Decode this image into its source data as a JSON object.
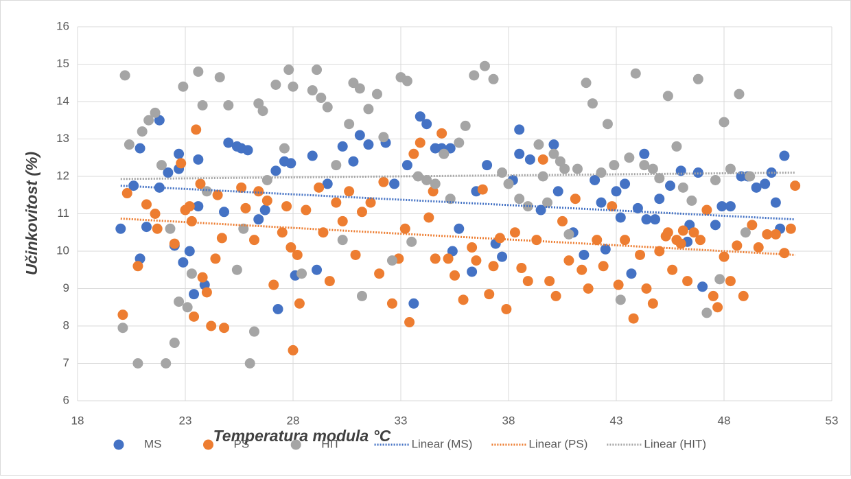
{
  "chart_data": {
    "type": "scatter",
    "x_label": "Temperatura modula °C",
    "y_label": "Učinkovitost (%)",
    "xlim": [
      18,
      53
    ],
    "xticks": [
      18,
      23,
      28,
      33,
      38,
      43,
      48,
      53
    ],
    "ylim": [
      6,
      16
    ],
    "yticks": [
      6,
      7,
      8,
      9,
      10,
      11,
      12,
      13,
      14,
      15,
      16
    ],
    "grid": true,
    "legend": "bottom",
    "series": [
      {
        "name": "MS",
        "color": "#4472c4",
        "x": [
          20,
          20.6,
          20.9,
          21.2,
          20.9,
          21.8,
          21.8,
          22.2,
          22.5,
          22.7,
          22.7,
          22.9,
          23.2,
          23.4,
          23.6,
          23.6,
          23.9,
          24.8,
          25,
          25.4,
          25.6,
          25.9,
          26.4,
          26.7,
          27.2,
          27.3,
          27.6,
          27.9,
          28.1,
          28.9,
          29.1,
          29.6,
          30.3,
          30.8,
          31.1,
          31.5,
          32.3,
          32.7,
          33.3,
          33.6,
          33.9,
          34.2,
          34.6,
          34.9,
          35.3,
          35.4,
          35.7,
          36.3,
          36.5,
          37,
          37.4,
          37.7,
          38.2,
          38.5,
          38.5,
          39,
          39.5,
          40.1,
          40.3,
          41,
          41.5,
          42,
          42.3,
          42.5,
          43,
          43.4,
          43.7,
          44,
          44.3,
          44.8,
          45,
          45.5,
          46,
          46.3,
          46.4,
          46.8,
          47,
          47.6,
          47.9,
          48.3,
          48.8,
          49.1,
          49.5,
          49.9,
          50.2,
          50.4,
          50.6,
          50.8,
          44.4,
          43.2
        ],
        "values": [
          10.6,
          11.75,
          12.75,
          10.65,
          9.8,
          13.5,
          11.7,
          12.1,
          10.15,
          12.2,
          12.6,
          9.7,
          10,
          8.85,
          12.45,
          11.2,
          9.1,
          11.05,
          12.9,
          12.8,
          12.75,
          12.7,
          10.85,
          11.1,
          12.15,
          8.45,
          12.4,
          12.35,
          9.35,
          12.55,
          9.5,
          11.8,
          12.8,
          12.4,
          13.1,
          12.85,
          12.9,
          11.8,
          12.3,
          8.6,
          13.6,
          13.4,
          12.75,
          12.75,
          12.75,
          10,
          10.6,
          9.45,
          11.6,
          12.3,
          10.2,
          9.85,
          11.9,
          13.25,
          12.6,
          12.45,
          11.1,
          12.85,
          11.6,
          10.5,
          9.9,
          11.9,
          11.3,
          10.05,
          11.6,
          11.8,
          9.4,
          11.15,
          12.6,
          10.85,
          11.4,
          11.75,
          12.15,
          10.25,
          10.7,
          12.1,
          9.05,
          10.7,
          11.2,
          11.2,
          12,
          12,
          11.7,
          11.8,
          12.1,
          11.3,
          10.6,
          12.55,
          10.85,
          10.9
        ]
      },
      {
        "name": "PS",
        "color": "#ed7d31",
        "x": [
          20.1,
          20.3,
          20.8,
          21.2,
          21.6,
          21.7,
          22.5,
          22.8,
          23,
          23.2,
          23.3,
          23.4,
          23.5,
          23.7,
          23.8,
          24,
          24.2,
          24.4,
          24.5,
          24.7,
          24.8,
          25.6,
          25.8,
          26.2,
          26.4,
          26.8,
          27.1,
          27.5,
          27.7,
          27.9,
          28,
          28.2,
          28.3,
          28.6,
          29.2,
          29.4,
          29.7,
          30,
          30.3,
          30.6,
          30.9,
          31.2,
          31.6,
          32,
          32.2,
          32.6,
          32.9,
          33.2,
          33.4,
          33.6,
          33.9,
          34.3,
          34.5,
          34.6,
          34.9,
          35.2,
          35.5,
          35.9,
          36.3,
          36.5,
          36.8,
          37.1,
          37.3,
          37.6,
          37.9,
          38.3,
          38.6,
          38.9,
          39.3,
          39.6,
          39.9,
          40.2,
          40.5,
          40.8,
          41.1,
          41.4,
          41.7,
          42.1,
          42.4,
          42.8,
          43.1,
          43.4,
          43.8,
          44.1,
          44.4,
          44.7,
          45,
          45.3,
          45.6,
          46,
          46.3,
          46.6,
          46.9,
          47.2,
          47.5,
          47.7,
          48,
          48.3,
          48.6,
          48.9,
          49.3,
          49.6,
          50,
          50.4,
          50.8,
          51.1,
          51.3,
          45.4,
          45.8,
          46.1
        ],
        "values": [
          8.3,
          11.55,
          9.6,
          11.25,
          11,
          10.6,
          10.2,
          12.35,
          11.1,
          11.2,
          10.8,
          8.25,
          13.25,
          11.8,
          9.3,
          8.9,
          8,
          9.8,
          11.5,
          10.35,
          7.95,
          11.7,
          11.15,
          10.3,
          11.6,
          11.35,
          9.1,
          10.5,
          11.2,
          10.1,
          7.35,
          9.9,
          8.6,
          11.1,
          11.7,
          10.5,
          9.2,
          11.3,
          10.8,
          11.6,
          9.9,
          11.05,
          11.3,
          9.4,
          11.85,
          8.6,
          9.8,
          10.6,
          8.1,
          12.6,
          12.9,
          10.9,
          11.6,
          9.8,
          13.15,
          9.8,
          9.35,
          8.7,
          10.1,
          9.75,
          11.65,
          8.85,
          9.6,
          10.35,
          8.45,
          10.5,
          9.55,
          9.2,
          10.3,
          12.45,
          9.2,
          8.8,
          10.8,
          9.75,
          11.4,
          9.5,
          9,
          10.3,
          9.6,
          11.2,
          9.1,
          10.3,
          8.2,
          9.9,
          9,
          8.6,
          10,
          10.4,
          9.5,
          10.2,
          9.2,
          10.5,
          10.3,
          11.1,
          8.8,
          8.5,
          9.85,
          9.2,
          10.15,
          8.8,
          10.7,
          10.1,
          10.45,
          10.45,
          9.95,
          10.6,
          11.75,
          10.5,
          10.3,
          10.55
        ]
      },
      {
        "name": "HIT",
        "color": "#a5a5a5",
        "x": [
          20.1,
          20.2,
          20.4,
          20.8,
          21,
          21.3,
          21.6,
          21.9,
          22.1,
          22.3,
          22.5,
          22.7,
          22.9,
          23.1,
          23.3,
          23.6,
          23.8,
          24,
          24.6,
          25,
          25.4,
          25.7,
          26,
          26.2,
          26.4,
          26.6,
          26.8,
          27.2,
          27.6,
          27.8,
          28,
          28.4,
          28.9,
          29.1,
          29.3,
          29.6,
          30,
          30.3,
          30.6,
          30.8,
          31.1,
          31.2,
          31.5,
          31.9,
          32.2,
          32.6,
          33,
          33.3,
          33.5,
          33.8,
          34.2,
          34.6,
          35,
          35.3,
          35.7,
          36,
          36.4,
          36.9,
          37.3,
          37.7,
          38,
          38.5,
          38.9,
          39.4,
          39.8,
          40.1,
          40.4,
          40.8,
          41.2,
          41.6,
          41.9,
          42.3,
          42.6,
          42.9,
          43.2,
          43.6,
          43.9,
          44.3,
          44.7,
          45,
          45.4,
          45.8,
          46.1,
          46.5,
          46.8,
          47.2,
          47.6,
          48,
          48.3,
          48.7,
          49,
          47.8,
          49.2,
          39.6,
          40.6
        ],
        "values": [
          7.95,
          14.7,
          12.85,
          7,
          13.2,
          13.5,
          13.7,
          12.3,
          7,
          10.6,
          7.55,
          8.65,
          14.4,
          8.5,
          9.4,
          14.8,
          13.9,
          11.6,
          14.65,
          13.9,
          9.5,
          10.6,
          7,
          7.85,
          13.95,
          13.75,
          11.9,
          14.45,
          12.75,
          14.85,
          14.4,
          9.4,
          14.3,
          14.85,
          14.1,
          13.85,
          12.3,
          10.3,
          13.4,
          14.5,
          14.35,
          8.8,
          13.8,
          14.2,
          13.05,
          9.75,
          14.65,
          14.55,
          10.25,
          12,
          11.9,
          11.8,
          12.6,
          11.4,
          12.9,
          13.35,
          14.7,
          14.95,
          14.6,
          12.1,
          11.8,
          11.4,
          11.2,
          12.85,
          11.3,
          12.6,
          12.4,
          10.45,
          12.2,
          14.5,
          13.95,
          12.1,
          13.4,
          12.3,
          8.7,
          12.5,
          14.75,
          12.3,
          12.2,
          11.95,
          14.15,
          12.8,
          11.7,
          11.35,
          14.6,
          8.35,
          11.9,
          13.45,
          12.2,
          14.2,
          10.5,
          9.25,
          12,
          12,
          12.2
        ]
      }
    ],
    "trendlines": [
      {
        "name": "Linear (MS)",
        "color": "#4472c4",
        "x": [
          20,
          51.3
        ],
        "values": [
          11.75,
          10.85
        ]
      },
      {
        "name": "Linear (PS)",
        "color": "#ed7d31",
        "x": [
          20,
          51.3
        ],
        "values": [
          10.87,
          9.9
        ]
      },
      {
        "name": "Linear (HIT)",
        "color": "#a5a5a5",
        "x": [
          20,
          51.3
        ],
        "values": [
          11.93,
          12.1
        ]
      }
    ]
  }
}
